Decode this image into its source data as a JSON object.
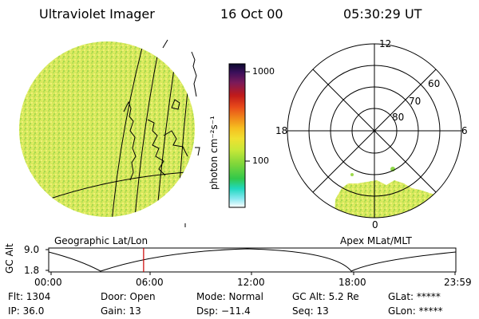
{
  "header": {
    "instrument": "Ultraviolet Imager",
    "date": "16 Oct 00",
    "time": "05:30:29 UT"
  },
  "colors": {
    "imager_fill": "#d6e85a",
    "polar_fill": "#c7e24a",
    "timeline_marker": "#cc0000",
    "colorbar_stops": [
      "#0a0a2e",
      "#3a0f5a",
      "#7a1a5a",
      "#c01a1a",
      "#e84a1a",
      "#f08a1a",
      "#f6c020",
      "#f0e030",
      "#c8e838",
      "#7ed63a",
      "#32c84a",
      "#20d8c0",
      "#8ae8f0",
      "#ffffff"
    ]
  },
  "colorbar": {
    "tick_1000": "1000",
    "tick_100": "100",
    "unit_label": "photon cm⁻²s⁻¹"
  },
  "imager_view": {
    "label": "Geographic Lat/Lon"
  },
  "polar_plot": {
    "label": "Apex MLat/MLT",
    "mlt_12": "12",
    "mlt_18": "18",
    "mlt_6": "6",
    "mlt_0": "0",
    "lat_60": "60",
    "lat_70": "70",
    "lat_80": "80"
  },
  "timeline": {
    "axis_label": "GC Alt",
    "y_max": "9.0",
    "y_min": "1.8",
    "ticks": [
      "00:00",
      "06:00",
      "12:00",
      "18:00",
      "23:59"
    ],
    "marker_time_fraction": 0.229
  },
  "status": {
    "flt": "Flt: 1304",
    "ip": "IP: 36.0",
    "door": "Door: Open",
    "gain": "Gain: 13",
    "mode": "Mode: Normal",
    "dsp": "Dsp:  −11.4",
    "gc_alt": "GC Alt: 5.2 Re",
    "seq": "Seq: 13",
    "glat": "GLat: *****",
    "glon": "GLon: *****"
  }
}
